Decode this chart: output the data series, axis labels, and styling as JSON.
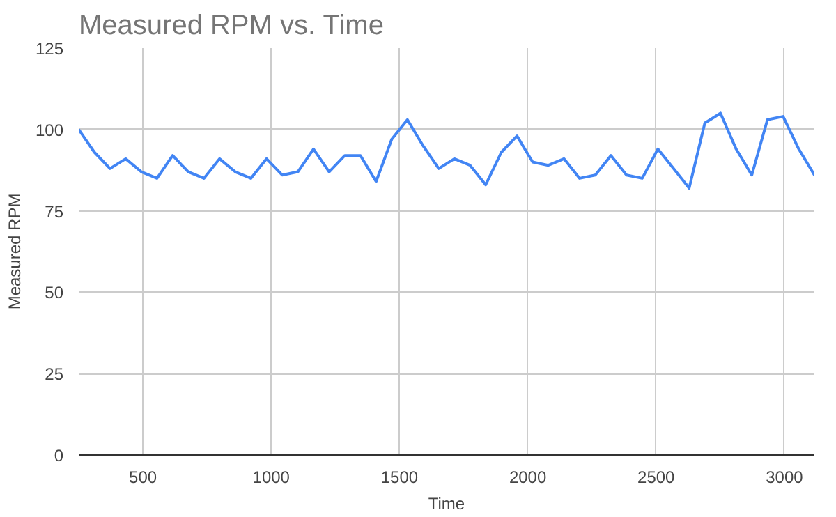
{
  "chart_data": {
    "type": "line",
    "title": "Measured RPM vs. Time",
    "xlabel": "Time",
    "ylabel": "Measured RPM",
    "x": [
      250,
      311,
      372,
      433,
      494,
      555,
      616,
      677,
      738,
      799,
      860,
      921,
      982,
      1043,
      1104,
      1165,
      1226,
      1287,
      1348,
      1409,
      1470,
      1531,
      1592,
      1653,
      1714,
      1775,
      1836,
      1897,
      1958,
      2019,
      2080,
      2141,
      2202,
      2263,
      2324,
      2385,
      2446,
      2507,
      2568,
      2629,
      2690,
      2751,
      2812,
      2873,
      2934,
      2995,
      3056,
      3117
    ],
    "series": [
      {
        "color": "#4285f4",
        "values": [
          100,
          93,
          88,
          91,
          87,
          85,
          92,
          87,
          85,
          91,
          87,
          85,
          91,
          86,
          87,
          94,
          87,
          92,
          92,
          84,
          97,
          103,
          95,
          88,
          91,
          89,
          83,
          93,
          98,
          90,
          89,
          91,
          85,
          86,
          92,
          86,
          85,
          94,
          88,
          82,
          102,
          105,
          94,
          86,
          103,
          104,
          94,
          86
        ]
      }
    ],
    "xlim": [
      250,
      3117
    ],
    "xticks": [
      500,
      1000,
      1500,
      2000,
      2500,
      3000
    ],
    "ylim": [
      0,
      125
    ],
    "yticks": [
      0,
      25,
      50,
      75,
      100,
      125
    ],
    "grid": true,
    "marker": "none",
    "line_style": "solid"
  }
}
